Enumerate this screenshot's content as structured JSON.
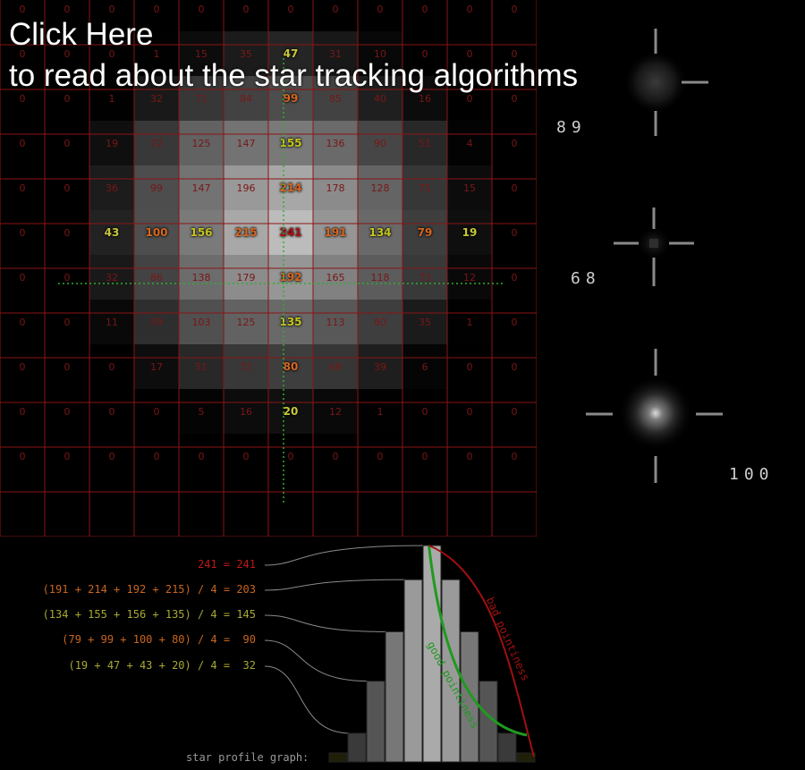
{
  "header": {
    "link_line1": "Click Here",
    "link_line2": "to read about the star tracking algorithms"
  },
  "pixel_grid": {
    "rows": [
      [
        "0",
        "0",
        "0",
        "0",
        "0",
        "0",
        "0",
        "0",
        "0",
        "0",
        "0",
        "0"
      ],
      [
        "0",
        "0",
        "0",
        "1",
        "15",
        "35",
        "47",
        "31",
        "10",
        "0",
        "0",
        "0"
      ],
      [
        "0",
        "0",
        "1",
        "32",
        "71",
        "84",
        "99",
        "85",
        "40",
        "16",
        "0",
        "0"
      ],
      [
        "0",
        "0",
        "19",
        "72",
        "125",
        "147",
        "155",
        "136",
        "90",
        "51",
        "4",
        "0"
      ],
      [
        "0",
        "0",
        "36",
        "99",
        "147",
        "196",
        "214",
        "178",
        "128",
        "71",
        "15",
        "0"
      ],
      [
        "0",
        "0",
        "43",
        "100",
        "156",
        "215",
        "241",
        "191",
        "134",
        "79",
        "19",
        "0"
      ],
      [
        "0",
        "0",
        "32",
        "86",
        "138",
        "179",
        "192",
        "165",
        "118",
        "73",
        "12",
        "0"
      ],
      [
        "0",
        "0",
        "11",
        "59",
        "103",
        "125",
        "135",
        "113",
        "80",
        "35",
        "1",
        "0"
      ],
      [
        "0",
        "0",
        "0",
        "17",
        "51",
        "72",
        "80",
        "69",
        "39",
        "6",
        "0",
        "0"
      ],
      [
        "0",
        "0",
        "0",
        "0",
        "5",
        "16",
        "20",
        "12",
        "1",
        "0",
        "0",
        "0"
      ],
      [
        "0",
        "0",
        "0",
        "0",
        "0",
        "0",
        "0",
        "0",
        "0",
        "0",
        "0",
        "0"
      ]
    ],
    "center_value_color": "#b01010",
    "ring1_color": "#d8661e",
    "ring2_color": "#c6c61e",
    "ring3_color": "#d8661e",
    "ring4_color": "#c8c83a",
    "dim_color": "#7a1616",
    "grid_line_color": "#8b1414",
    "crosshair_color": "#2fae2f"
  },
  "reticles": [
    {
      "label": "89"
    },
    {
      "label": "68"
    },
    {
      "label": "100"
    }
  ],
  "formulas": [
    {
      "text": "241 = 241",
      "color": "#c01818"
    },
    {
      "text": "(191 + 214 + 192 + 215) / 4 = 203",
      "color": "#c8661e"
    },
    {
      "text": "(134 + 155 + 156 + 135) / 4 = 145",
      "color": "#a8a832"
    },
    {
      "text": "(79 + 99 + 100 + 80) / 4 =  90",
      "color": "#c8661e"
    },
    {
      "text": "(19 + 47 + 43 + 20) / 4 =  32",
      "color": "#a8a832"
    }
  ],
  "profile": {
    "caption": "star profile graph:",
    "bars": [
      10,
      32,
      90,
      145,
      203,
      241,
      203,
      145,
      90,
      32,
      10
    ],
    "max_value": 241,
    "good_label": "good pointiness",
    "bad_label": "bad pointiness",
    "good_color": "#1f9a1f",
    "bad_color": "#a01010"
  }
}
